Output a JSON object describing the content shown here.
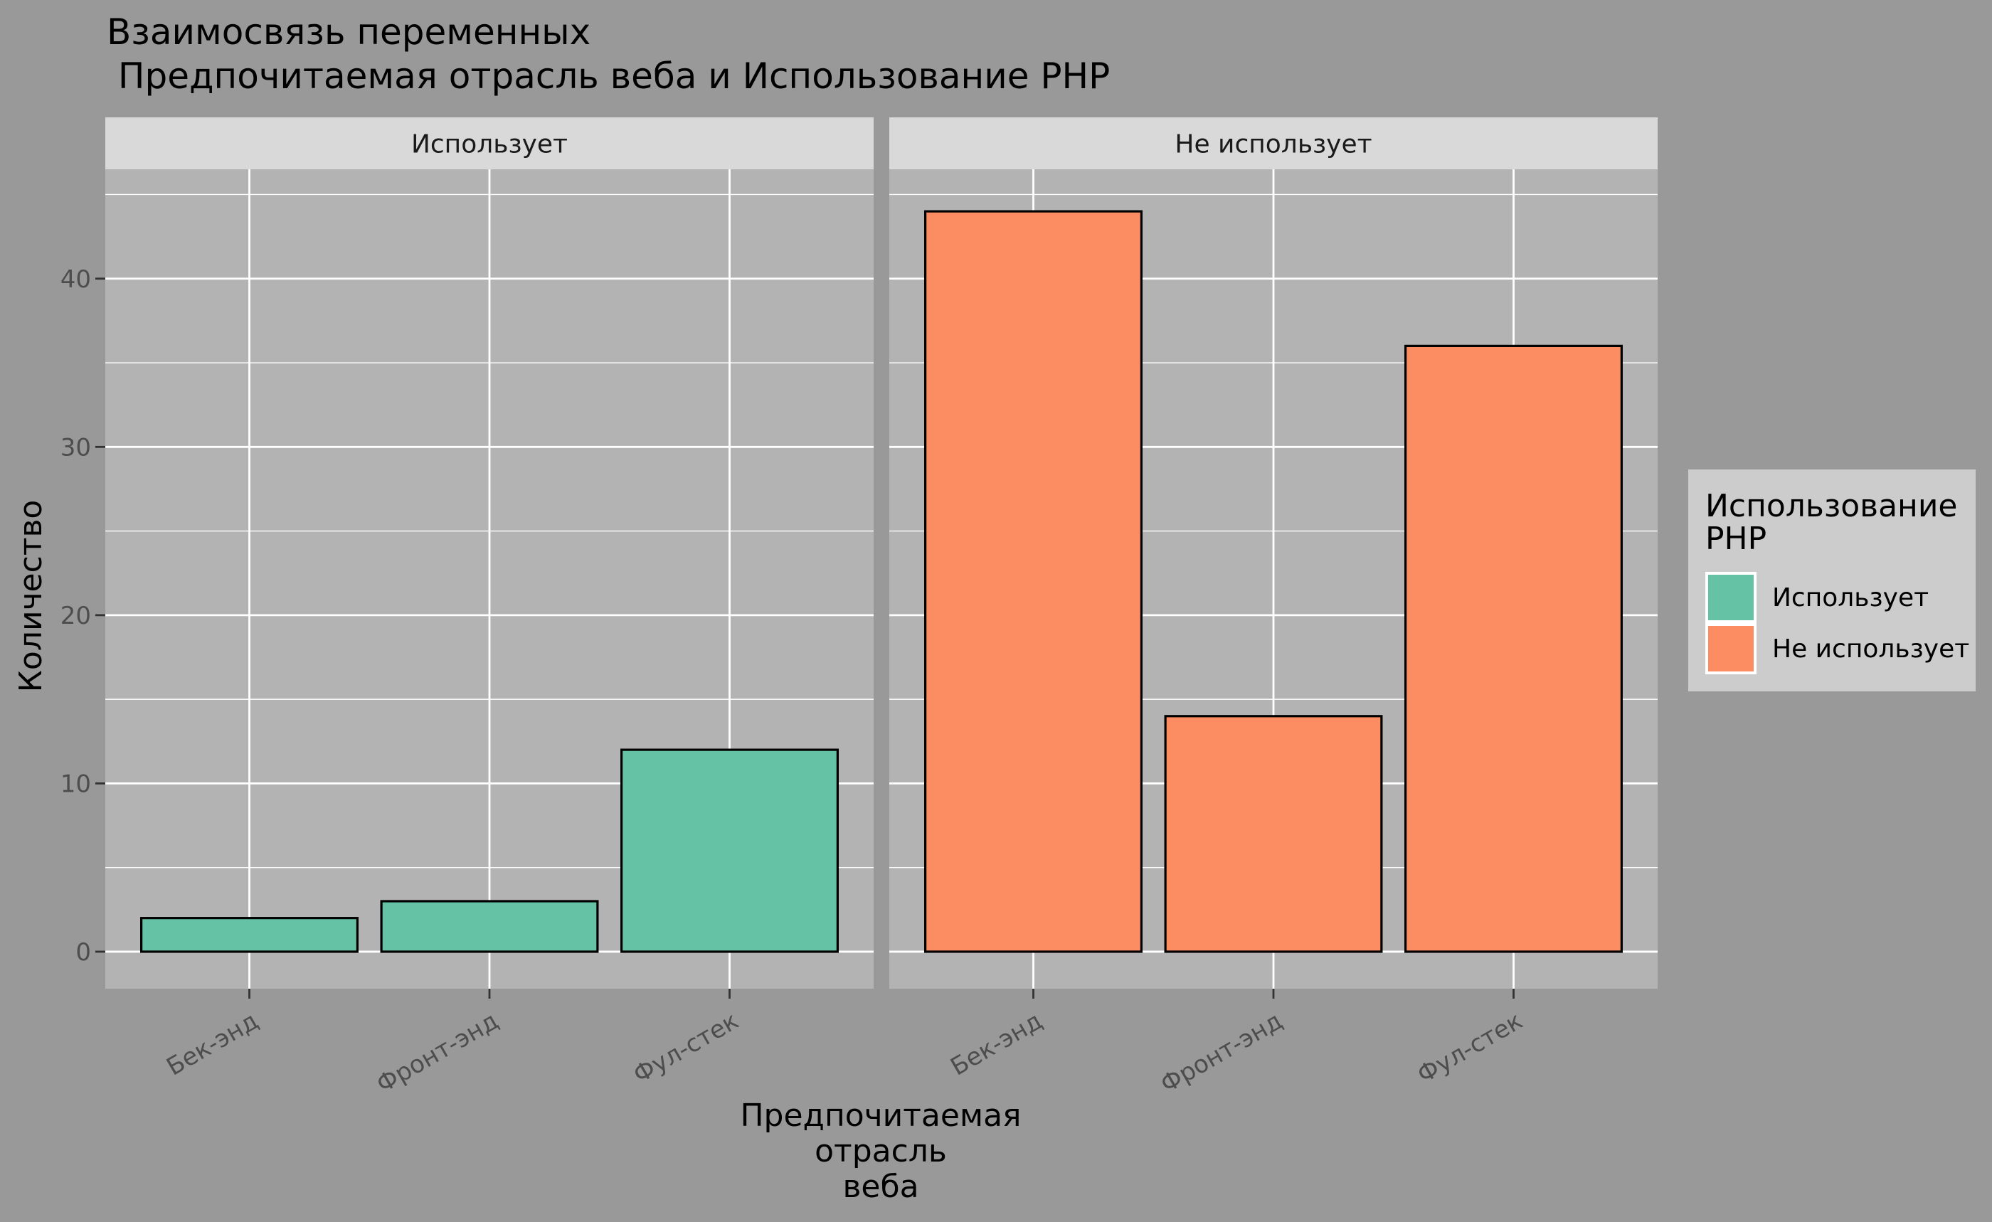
{
  "chart_data": {
    "type": "bar",
    "title_line1": "Взаимосвязь переменных",
    "title_line2": " Предпочитаемая отрасль веба и Использование PHP",
    "xlabel_lines": [
      "Предпочитаемая",
      "отрасль",
      "веба"
    ],
    "ylabel": "Количество",
    "categories": [
      "Бек-энд",
      "Фронт-энд",
      "Фул-стек"
    ],
    "ylim": [
      -2.2,
      46.5
    ],
    "yticks": [
      0,
      10,
      20,
      30,
      40
    ],
    "panels": [
      {
        "name": "Использует",
        "color": "#66C2A5",
        "values": [
          2,
          3,
          12
        ]
      },
      {
        "name": "Не использует",
        "color": "#FC8D62",
        "values": [
          44,
          14,
          36
        ]
      }
    ],
    "legend": {
      "title_lines": [
        "Использование",
        "PHP"
      ],
      "position": "right",
      "items": [
        {
          "label": "Использует",
          "color": "#66C2A5"
        },
        {
          "label": "Не использует",
          "color": "#FC8D62"
        }
      ]
    },
    "colors": {
      "background": "#999999",
      "panel": "#B3B3B3",
      "strip": "#D9D9D9",
      "grid": "#FFFFFF",
      "legend_bg": "#CCCCCC",
      "bar_outline": "#000000"
    }
  }
}
